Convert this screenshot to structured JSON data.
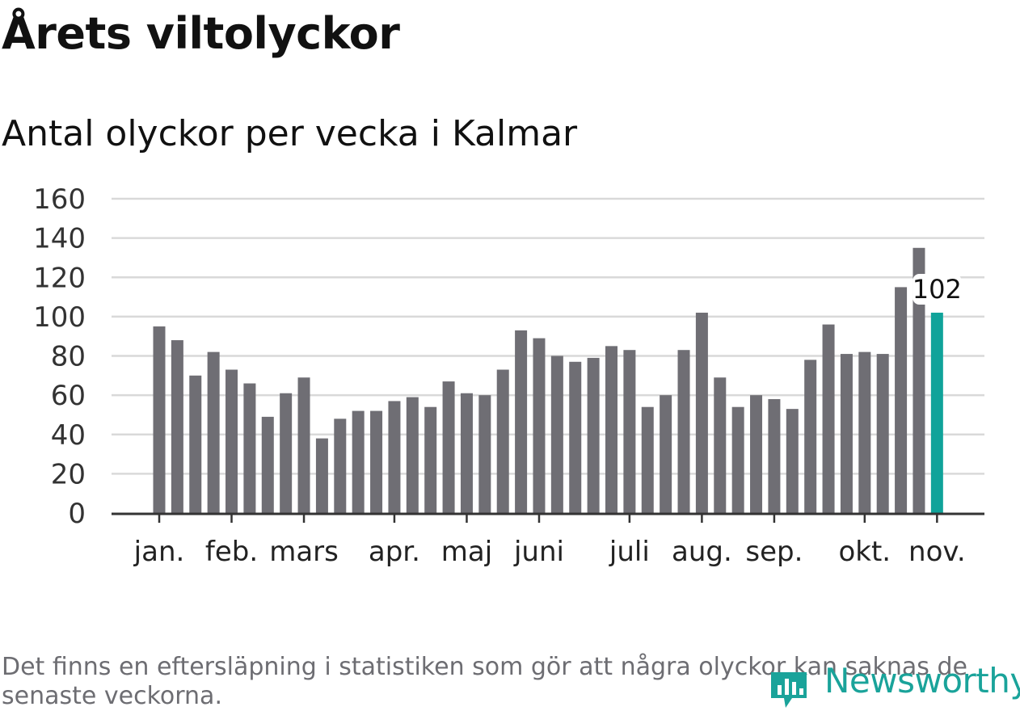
{
  "title": "Årets viltolyckor",
  "subtitle": "Antal olyckor per vecka i Kalmar",
  "footnote": "Det finns en eftersläpning i statistiken som gör att några olyckor kan saknas de senaste veckorna.",
  "brand": "Newsworthy",
  "colors": {
    "bar": "#6f6e74",
    "highlight": "#10a39a",
    "grid": "#d9d9d9",
    "axis": "#333333",
    "brand": "#1aa39a"
  },
  "chart_data": {
    "type": "bar",
    "title": "Årets viltolyckor",
    "subtitle": "Antal olyckor per vecka i Kalmar",
    "values": [
      95,
      88,
      70,
      82,
      73,
      66,
      49,
      61,
      69,
      38,
      48,
      52,
      52,
      57,
      59,
      54,
      67,
      61,
      60,
      73,
      93,
      89,
      80,
      77,
      79,
      85,
      83,
      54,
      60,
      83,
      102,
      69,
      54,
      60,
      58,
      53,
      78,
      96,
      81,
      82,
      81,
      115,
      135,
      102
    ],
    "highlight_index": 43,
    "highlight_label": "102",
    "yticks": [
      0,
      20,
      40,
      60,
      80,
      100,
      120,
      140,
      160
    ],
    "ylim": [
      0,
      160
    ],
    "month_labels": [
      {
        "label": "jan.",
        "index": 0
      },
      {
        "label": "feb.",
        "index": 4
      },
      {
        "label": "mars",
        "index": 8
      },
      {
        "label": "apr.",
        "index": 13
      },
      {
        "label": "maj",
        "index": 17
      },
      {
        "label": "juni",
        "index": 21
      },
      {
        "label": "juli",
        "index": 26
      },
      {
        "label": "aug.",
        "index": 30
      },
      {
        "label": "sep.",
        "index": 34
      },
      {
        "label": "okt.",
        "index": 39
      },
      {
        "label": "nov.",
        "index": 43
      }
    ],
    "grid": true,
    "legend": "none"
  }
}
